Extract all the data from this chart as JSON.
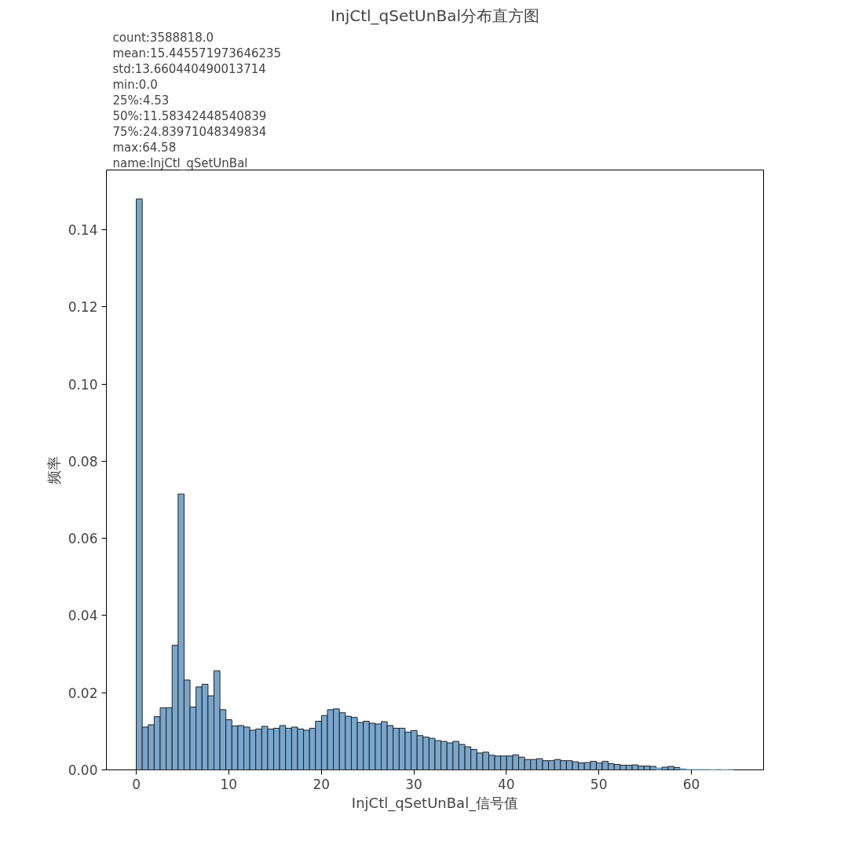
{
  "chart_data": {
    "type": "histogram",
    "title": "InjCtl_qSetUnBal分布直方图",
    "xlabel": "InjCtl_qSetUnBal_信号值",
    "ylabel": "频率",
    "annotations": [
      "count:3588818.0",
      "mean:15.445571973646235",
      "std:13.660440490013714",
      "min:0.0",
      "25%:4.53",
      "50%:11.58342448540839",
      "75%:24.83971048349834",
      "max:64.58",
      "name:InjCtl_qSetUnBal"
    ],
    "color": "#79a6cc",
    "bins": [
      0,
      0.6458,
      1.2916,
      1.9374,
      2.5832,
      3.229,
      3.8748,
      4.5206,
      5.1664,
      5.8122,
      6.458,
      7.1038,
      7.7496,
      8.3954,
      9.0412,
      9.687,
      10.3328,
      10.9786,
      11.6244,
      12.2702,
      12.916,
      13.5618,
      14.2076,
      14.8534,
      15.4992,
      16.145,
      16.7908,
      17.4366,
      18.0824,
      18.7282,
      19.374,
      20.0198,
      20.6656,
      21.3114,
      21.9572,
      22.603,
      23.2488,
      23.8946,
      24.5404,
      25.1862,
      25.832,
      26.4778,
      27.1236,
      27.7694,
      28.4152,
      29.061,
      29.7068,
      30.3526,
      30.9984,
      31.6442,
      32.29,
      32.9358,
      33.5816,
      34.2274,
      34.8732,
      35.519,
      36.1648,
      36.8106,
      37.4564,
      38.1022,
      38.748,
      39.3938,
      40.0396,
      40.6854,
      41.3312,
      41.977,
      42.6228,
      43.2686,
      43.9144,
      44.5602,
      45.206,
      45.8518,
      46.4976,
      47.1434,
      47.7892,
      48.435,
      49.0808,
      49.7266,
      50.3724,
      51.0182,
      51.664,
      52.3098,
      52.9556,
      53.6014,
      54.2472,
      54.893,
      55.5388,
      56.1846,
      56.8304,
      57.4762,
      58.122,
      58.7678,
      59.4136,
      60.0594,
      60.7052,
      61.351,
      61.9968,
      62.6426,
      63.2884,
      63.9342,
      64.58
    ],
    "values": [
      0.148,
      0.0111,
      0.0117,
      0.0138,
      0.0161,
      0.0161,
      0.0323,
      0.0715,
      0.0233,
      0.0163,
      0.0215,
      0.0222,
      0.0192,
      0.0257,
      0.0156,
      0.013,
      0.0114,
      0.0115,
      0.0111,
      0.0103,
      0.0106,
      0.0113,
      0.0106,
      0.0108,
      0.0115,
      0.0108,
      0.0111,
      0.0106,
      0.0103,
      0.0108,
      0.0126,
      0.0141,
      0.0156,
      0.0158,
      0.0148,
      0.0139,
      0.0136,
      0.0123,
      0.0126,
      0.0121,
      0.0119,
      0.0125,
      0.0115,
      0.0108,
      0.0108,
      0.0098,
      0.0102,
      0.0089,
      0.0085,
      0.0082,
      0.0076,
      0.0074,
      0.007,
      0.0074,
      0.0066,
      0.006,
      0.0053,
      0.0044,
      0.0046,
      0.0038,
      0.0036,
      0.0036,
      0.0036,
      0.0039,
      0.0033,
      0.0027,
      0.0027,
      0.0029,
      0.0024,
      0.0024,
      0.0027,
      0.0024,
      0.0024,
      0.0021,
      0.0018,
      0.0019,
      0.0022,
      0.0018,
      0.0022,
      0.0016,
      0.0014,
      0.0012,
      0.0012,
      0.0013,
      0.001,
      0.001,
      0.0009,
      0.0005,
      0.0007,
      0.0009,
      0.0006,
      0.0003,
      0.0001,
      0.0001,
      0.0001,
      0.0001,
      0,
      0.0001,
      0,
      0.0001
    ],
    "xlim": [
      -3.23,
      67.81
    ],
    "ylim": [
      0,
      0.1555
    ],
    "xticks": [
      0,
      10,
      20,
      30,
      40,
      50,
      60
    ],
    "yticks": [
      {
        "value": 0,
        "label": "0.00"
      },
      {
        "value": 0.02,
        "label": "0.02"
      },
      {
        "value": 0.04,
        "label": "0.04"
      },
      {
        "value": 0.06,
        "label": "0.06"
      },
      {
        "value": 0.08,
        "label": "0.08"
      },
      {
        "value": 0.1,
        "label": "0.10"
      },
      {
        "value": 0.12,
        "label": "0.12"
      },
      {
        "value": 0.14,
        "label": "0.14"
      }
    ],
    "grid": false
  }
}
